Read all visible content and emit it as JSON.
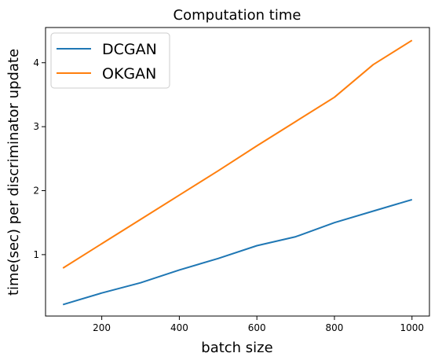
{
  "chart_data": {
    "type": "line",
    "title": "Computation time",
    "xlabel": "batch size",
    "ylabel": "time(sec) per discriminator update",
    "xlim": [
      55,
      1045
    ],
    "ylim": [
      0.04,
      4.55
    ],
    "xticks": [
      200,
      400,
      600,
      800,
      1000
    ],
    "yticks": [
      1,
      2,
      3,
      4
    ],
    "grid": false,
    "legend_position": "top-left",
    "series": [
      {
        "name": "DCGAN",
        "color": "#1f77b4",
        "x": [
          100,
          200,
          300,
          400,
          500,
          600,
          700,
          800,
          900,
          1000
        ],
        "y": [
          0.22,
          0.4,
          0.56,
          0.76,
          0.94,
          1.14,
          1.28,
          1.5,
          1.68,
          1.86
        ]
      },
      {
        "name": "OKGAN",
        "color": "#ff7f0e",
        "x": [
          100,
          200,
          300,
          400,
          500,
          600,
          700,
          800,
          900,
          1000
        ],
        "y": [
          0.79,
          1.17,
          1.55,
          1.93,
          2.31,
          2.7,
          3.08,
          3.46,
          3.97,
          4.35
        ]
      }
    ]
  }
}
